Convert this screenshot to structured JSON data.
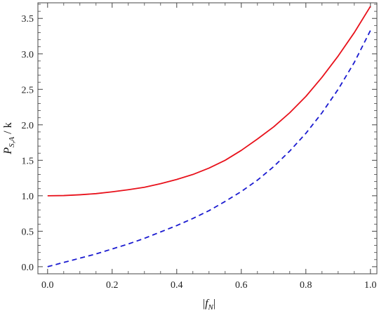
{
  "chart_data": {
    "type": "line",
    "title": "",
    "xlabel": {
      "bar_left": "|",
      "var": "f",
      "sub": "N",
      "bar_right": "|"
    },
    "ylabel": {
      "var": "P",
      "sub": "S,A",
      "suffix": " / k"
    },
    "xlim": [
      -0.03,
      1.02
    ],
    "ylim": [
      -0.1,
      3.72
    ],
    "xticks": [
      0.0,
      0.2,
      0.4,
      0.6,
      0.8,
      1.0
    ],
    "xtick_labels": [
      "0.0",
      "0.2",
      "0.4",
      "0.6",
      "0.8",
      "1.0"
    ],
    "yticks": [
      0.0,
      0.5,
      1.0,
      1.5,
      2.0,
      2.5,
      3.0,
      3.5
    ],
    "ytick_labels": [
      "0.0",
      "0.5",
      "1.0",
      "1.5",
      "2.0",
      "2.5",
      "3.0",
      "3.5"
    ],
    "grid": false,
    "series": [
      {
        "color": "#e8111b",
        "style": "solid",
        "x": [
          0.0,
          0.05,
          0.1,
          0.15,
          0.2,
          0.25,
          0.3,
          0.35,
          0.4,
          0.45,
          0.5,
          0.55,
          0.6,
          0.65,
          0.7,
          0.75,
          0.8,
          0.85,
          0.9,
          0.95,
          1.0
        ],
        "y": [
          1.0,
          1.003,
          1.014,
          1.03,
          1.055,
          1.085,
          1.12,
          1.17,
          1.23,
          1.3,
          1.39,
          1.5,
          1.64,
          1.8,
          1.97,
          2.17,
          2.4,
          2.67,
          2.97,
          3.3,
          3.67
        ]
      },
      {
        "color": "#1a1ad0",
        "style": "dashed",
        "x": [
          0.0,
          0.05,
          0.1,
          0.15,
          0.2,
          0.25,
          0.3,
          0.35,
          0.4,
          0.45,
          0.5,
          0.55,
          0.6,
          0.65,
          0.7,
          0.75,
          0.8,
          0.85,
          0.9,
          0.95,
          1.0
        ],
        "y": [
          0.0,
          0.06,
          0.12,
          0.18,
          0.25,
          0.32,
          0.4,
          0.49,
          0.58,
          0.68,
          0.79,
          0.92,
          1.06,
          1.22,
          1.41,
          1.63,
          1.88,
          2.17,
          2.5,
          2.88,
          3.33
        ]
      }
    ]
  }
}
